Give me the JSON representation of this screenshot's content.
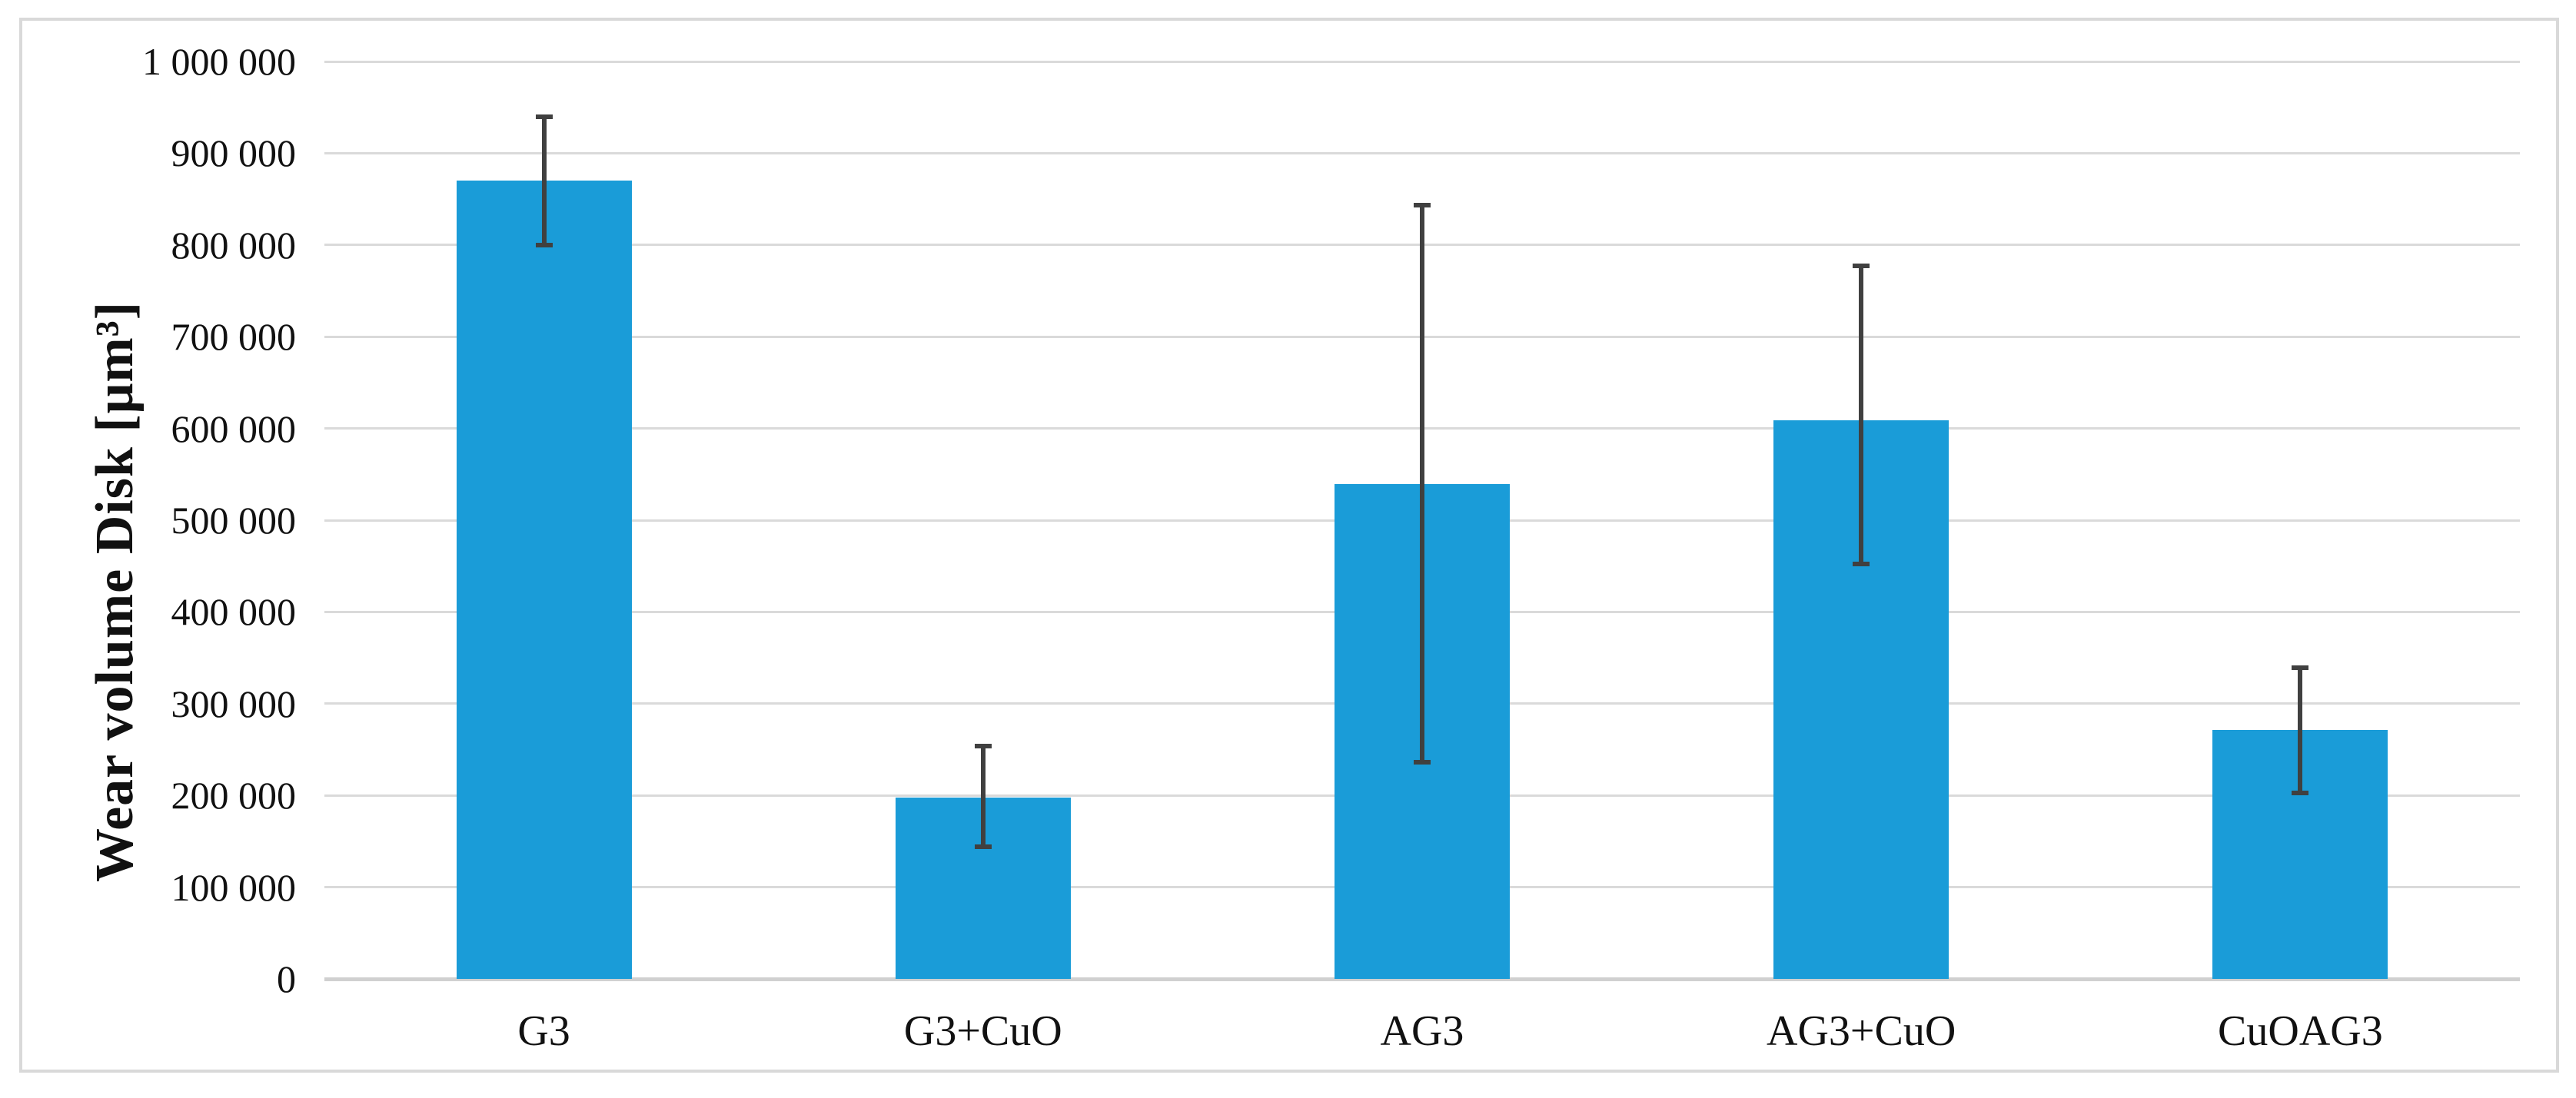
{
  "chart_data": {
    "type": "bar",
    "title": "",
    "xlabel": "",
    "ylabel": "Wear volume Disk [μm³]",
    "categories": [
      "G3",
      "G3+CuO",
      "AG3",
      "AG3+CuO",
      "CuOAG3"
    ],
    "values": [
      870000,
      198000,
      539000,
      609000,
      271000
    ],
    "error_bars": {
      "upper_values": [
        940000,
        254000,
        843000,
        777000,
        339000
      ],
      "lower_values": [
        800000,
        144000,
        236000,
        452000,
        203000
      ]
    },
    "ylim": [
      0,
      1000000
    ],
    "ytick_interval": 100000,
    "ytick_labels": [
      "0",
      "100 000",
      "200 000",
      "300 000",
      "400 000",
      "500 000",
      "600 000",
      "700 000",
      "800 000",
      "900 000",
      "1 000 000"
    ],
    "grid": "horizontal-only",
    "legend_position": "none",
    "colors": {
      "bar_fill": "#1a9cd8",
      "error_bar": "#404040",
      "gridline": "#dadada",
      "axis_line": "#d0d0d0",
      "figure_border": "#d9d9d9",
      "text": "#111111",
      "background": "#ffffff"
    }
  }
}
